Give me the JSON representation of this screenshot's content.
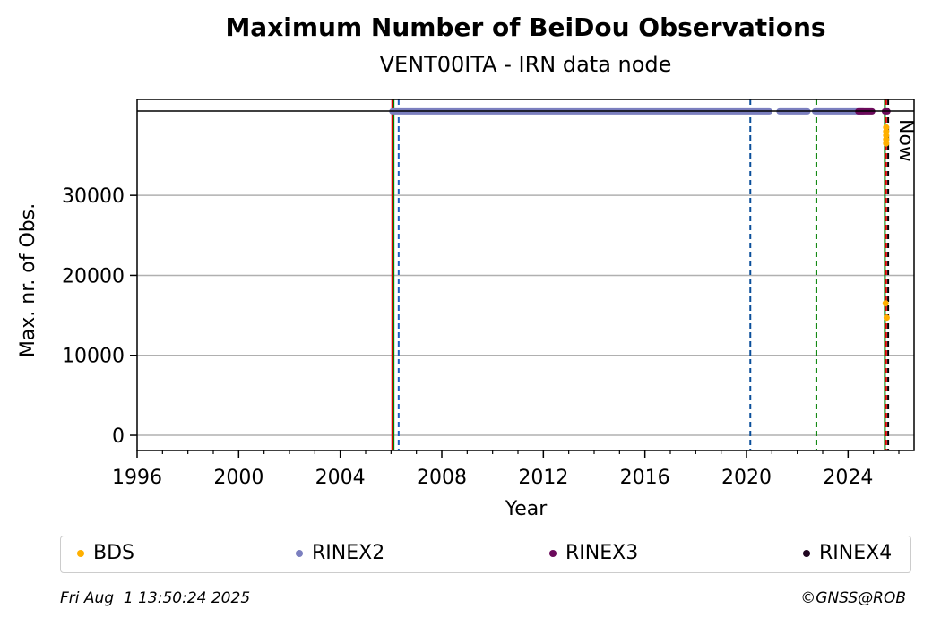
{
  "chart_data": {
    "type": "scatter",
    "title": "Maximum Number of BeiDou Observations",
    "subtitle": "VENT00ITA - IRN data node",
    "xlabel": "Year",
    "ylabel": "Max. nr. of Obs.",
    "xlim": [
      1996,
      2026.6
    ],
    "ylim": [
      -1900,
      42000
    ],
    "xticks": [
      1996,
      2000,
      2004,
      2008,
      2012,
      2016,
      2020,
      2024
    ],
    "yticks": [
      0,
      10000,
      20000,
      30000
    ],
    "grid": "horizontal",
    "legend_position": "bottom",
    "top_band_y": 40500,
    "series": [
      {
        "name": "BDS",
        "color": "#ffb000",
        "points": [
          [
            2025.5,
            36500
          ],
          [
            2025.5,
            37000
          ],
          [
            2025.5,
            37500
          ],
          [
            2025.5,
            38000
          ],
          [
            2025.5,
            38500
          ],
          [
            2025.48,
            16500
          ],
          [
            2025.52,
            14700
          ]
        ]
      },
      {
        "name": "RINEX2",
        "color": "#7b7fbf",
        "segments": [
          [
            2006.05,
            2020.9
          ],
          [
            2021.3,
            2022.4
          ],
          [
            2022.7,
            2024.6
          ]
        ]
      },
      {
        "name": "RINEX3",
        "color": "#6b0a5b",
        "segments": [
          [
            2024.4,
            2024.95
          ],
          [
            2025.45,
            2025.55
          ]
        ]
      },
      {
        "name": "RINEX4",
        "color": "#1f0520",
        "segments": []
      }
    ],
    "vertical_lines": [
      {
        "x": 2006.05,
        "color": "#d40000",
        "style": "solid"
      },
      {
        "x": 2006.1,
        "color": "#008000",
        "style": "solid"
      },
      {
        "x": 2006.3,
        "color": "#1f5fbf",
        "style": "dashed"
      },
      {
        "x": 2020.15,
        "color": "#0a4f9a",
        "style": "dashed"
      },
      {
        "x": 2022.75,
        "color": "#008000",
        "style": "dashed"
      },
      {
        "x": 2025.45,
        "color": "#008000",
        "style": "solid"
      },
      {
        "x": 2025.5,
        "color": "#d40000",
        "style": "dashed"
      },
      {
        "x": 2025.58,
        "color": "#000000",
        "style": "dashed"
      }
    ],
    "now_label": "Now"
  },
  "legend": {
    "items": [
      {
        "label": "BDS",
        "color": "#ffb000"
      },
      {
        "label": "RINEX2",
        "color": "#7b7fbf"
      },
      {
        "label": "RINEX3",
        "color": "#6b0a5b"
      },
      {
        "label": "RINEX4",
        "color": "#1f0520"
      }
    ]
  },
  "footer": {
    "date": "Fri Aug  1 13:50:24 2025",
    "credit": "©GNSS@ROB"
  }
}
